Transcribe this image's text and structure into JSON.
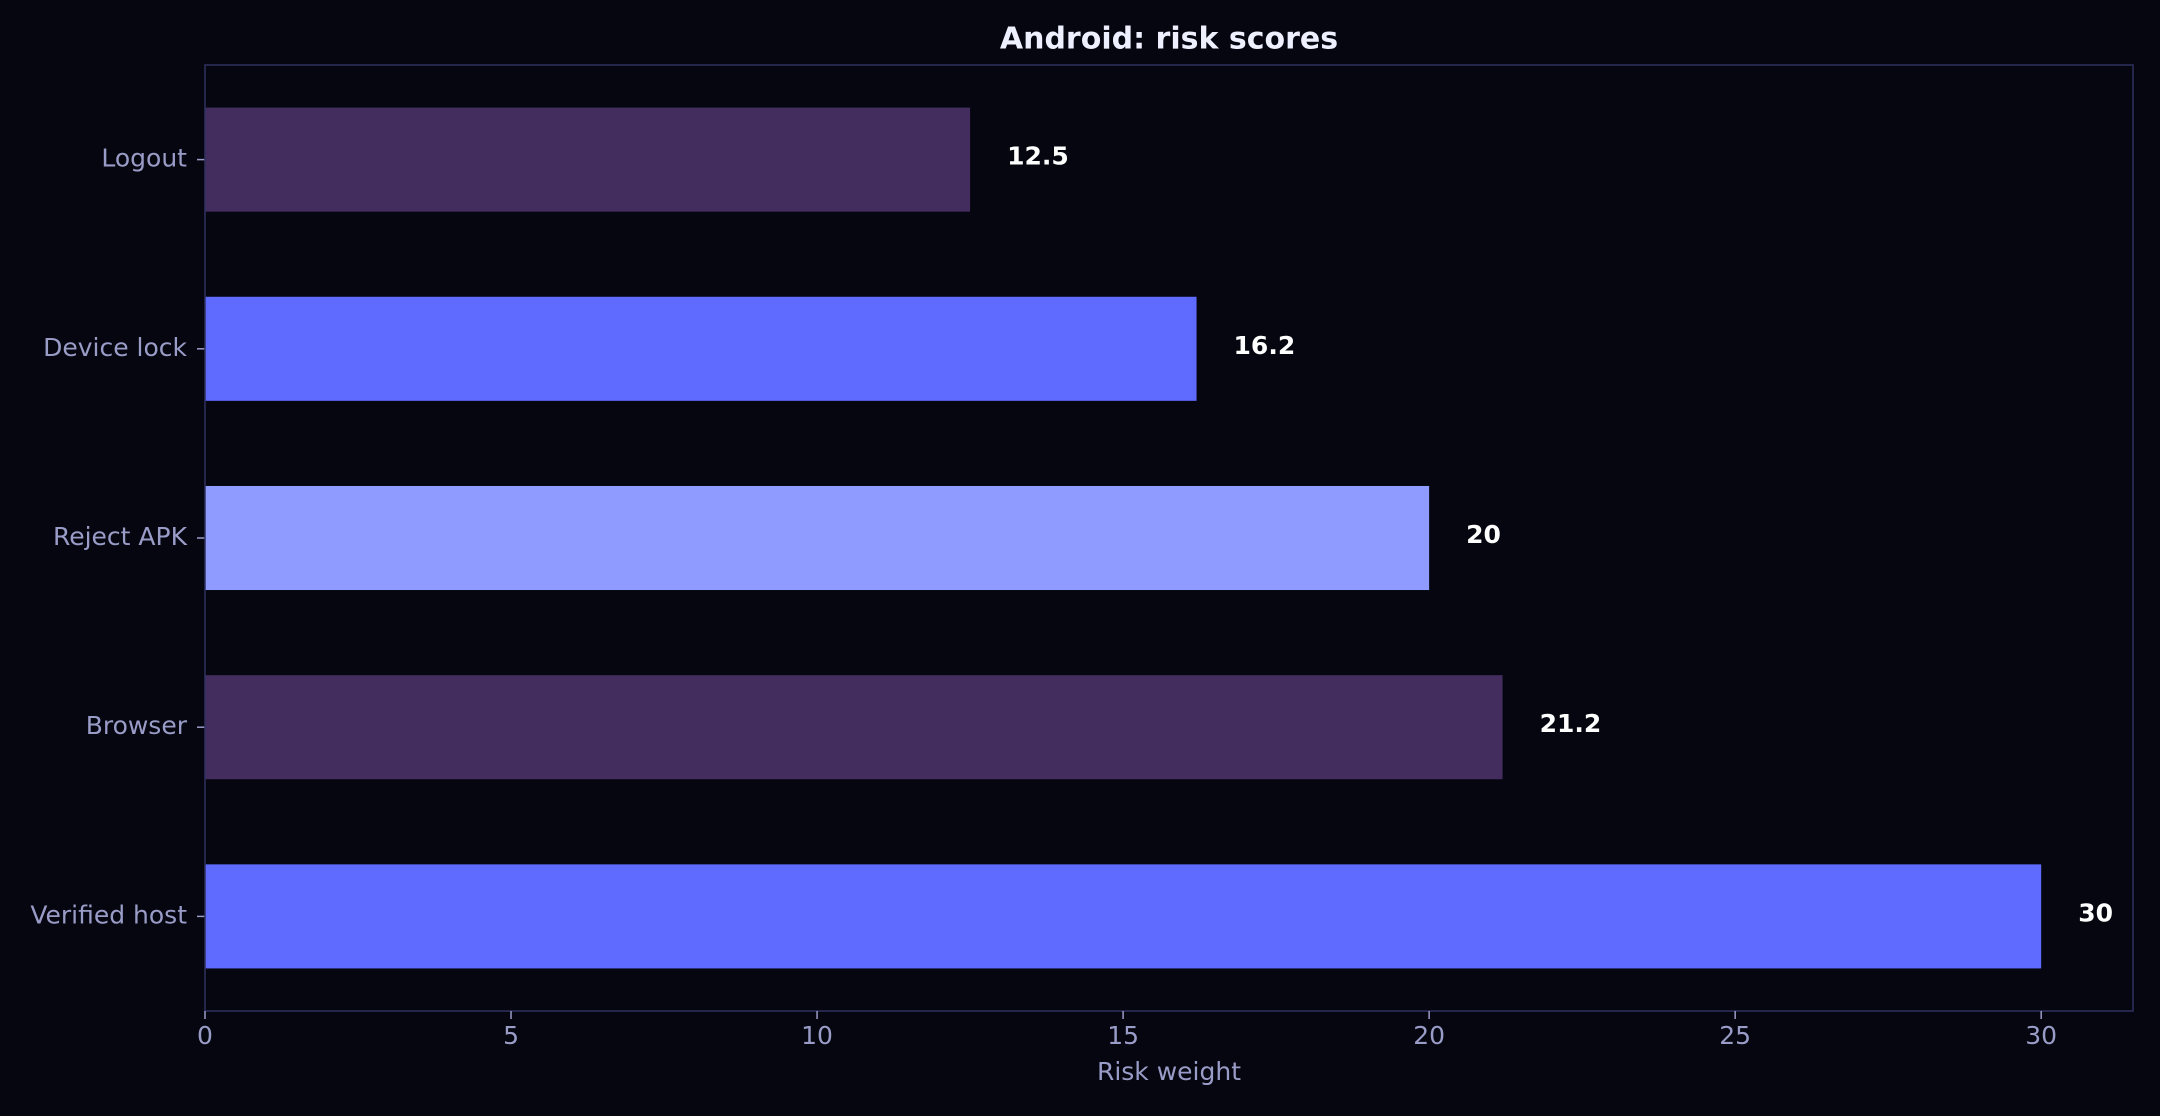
{
  "chart_data": {
    "type": "barh",
    "title": "Android: risk scores",
    "xlabel": "Risk weight",
    "categories": [
      "Logout",
      "Device lock",
      "Reject APK",
      "Browser",
      "Verified host"
    ],
    "values": [
      12.5,
      16.2,
      20,
      21.2,
      30
    ],
    "colors": [
      "#432c5e",
      "#5f6bff",
      "#8f9bff",
      "#432c5e",
      "#5f6bff"
    ],
    "xlim": [
      0,
      31.5
    ],
    "xticks": [
      0,
      5,
      10,
      15,
      20,
      25,
      30
    ],
    "grid": false
  }
}
